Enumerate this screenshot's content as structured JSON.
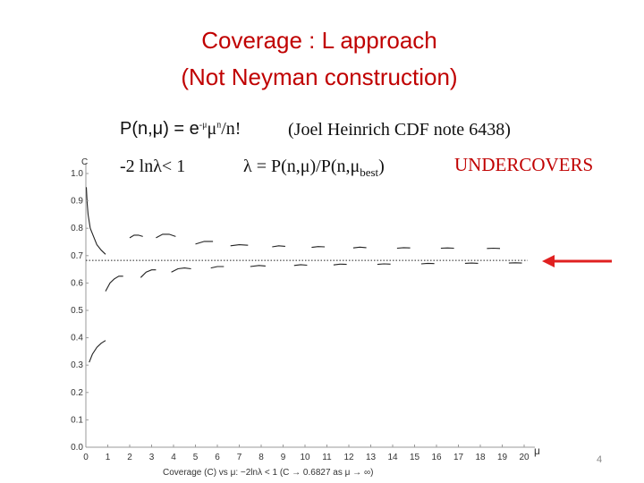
{
  "slide": {
    "title_line1": "Coverage : L approach",
    "title_line2": "(Not Neyman construction)",
    "formula_lhs": "P(n,μ) = e",
    "formula_exp1": "-μ",
    "formula_mid": "μ",
    "formula_exp2": "n",
    "formula_tail": "/n!",
    "reference": "(Joel Heinrich CDF note 6438)",
    "condition": "-2 lnλ< 1",
    "lambda_main": "λ = P(n,μ)/P(n,μ",
    "lambda_sub": "best",
    "lambda_close": ")",
    "verdict": "UNDERCOVERS",
    "page_number": "4",
    "colors": {
      "title": "#c00000",
      "arrow": "#e02020"
    },
    "arrow_icon": "left-arrow-icon"
  },
  "chart_data": {
    "type": "scatter",
    "ylabel": "C",
    "xlabel": "μ",
    "caption": "Coverage (C) vs μ: −2lnλ < 1     (C → 0.6827 as μ → ∞)",
    "xlim": [
      0,
      20
    ],
    "ylim": [
      0,
      1.0
    ],
    "x_ticks": [
      0,
      1,
      2,
      3,
      4,
      5,
      6,
      7,
      8,
      9,
      10,
      11,
      12,
      13,
      14,
      15,
      16,
      17,
      18,
      19,
      20
    ],
    "y_ticks": [
      0.0,
      0.1,
      0.2,
      0.3,
      0.4,
      0.5,
      0.6,
      0.7,
      0.8,
      0.9,
      1.0
    ],
    "y_tick_labels": [
      "0.0",
      "0.1",
      "0.2",
      "0.3",
      "0.4",
      "0.5",
      "0.6",
      "0.7",
      "0.8",
      "0.9",
      "1.0"
    ],
    "reference_line": 0.6827,
    "grid": false,
    "series": [
      {
        "points": [
          [
            0.02,
            0.95
          ],
          [
            0.06,
            0.89
          ],
          [
            0.1,
            0.85
          ],
          [
            0.2,
            0.8
          ],
          [
            0.35,
            0.77
          ],
          [
            0.5,
            0.74
          ],
          [
            0.7,
            0.72
          ],
          [
            0.9,
            0.705
          ]
        ]
      },
      {
        "points": [
          [
            0.15,
            0.31
          ],
          [
            0.3,
            0.34
          ],
          [
            0.5,
            0.365
          ],
          [
            0.7,
            0.38
          ],
          [
            0.9,
            0.39
          ]
        ]
      },
      {
        "points": [
          [
            0.9,
            0.57
          ],
          [
            1.1,
            0.6
          ],
          [
            1.3,
            0.615
          ],
          [
            1.5,
            0.625
          ],
          [
            1.7,
            0.625
          ]
        ]
      },
      {
        "points": [
          [
            2.0,
            0.765
          ],
          [
            2.2,
            0.775
          ],
          [
            2.4,
            0.775
          ],
          [
            2.6,
            0.77
          ]
        ]
      },
      {
        "points": [
          [
            2.5,
            0.62
          ],
          [
            2.75,
            0.64
          ],
          [
            3.0,
            0.648
          ],
          [
            3.2,
            0.648
          ]
        ]
      },
      {
        "points": [
          [
            3.2,
            0.765
          ],
          [
            3.5,
            0.778
          ],
          [
            3.8,
            0.778
          ],
          [
            4.1,
            0.77
          ]
        ]
      },
      {
        "points": [
          [
            3.9,
            0.64
          ],
          [
            4.2,
            0.652
          ],
          [
            4.5,
            0.655
          ],
          [
            4.8,
            0.652
          ]
        ]
      },
      {
        "points": [
          [
            5.0,
            0.742
          ],
          [
            5.4,
            0.752
          ],
          [
            5.8,
            0.752
          ]
        ]
      },
      {
        "points": [
          [
            5.7,
            0.655
          ],
          [
            6.0,
            0.66
          ],
          [
            6.3,
            0.66
          ]
        ]
      },
      {
        "points": [
          [
            6.6,
            0.736
          ],
          [
            7.0,
            0.74
          ],
          [
            7.4,
            0.738
          ]
        ]
      },
      {
        "points": [
          [
            7.5,
            0.66
          ],
          [
            7.9,
            0.664
          ],
          [
            8.2,
            0.662
          ]
        ]
      },
      {
        "points": [
          [
            8.5,
            0.732
          ],
          [
            8.8,
            0.736
          ],
          [
            9.1,
            0.734
          ]
        ]
      },
      {
        "points": [
          [
            9.5,
            0.664
          ],
          [
            9.8,
            0.667
          ],
          [
            10.1,
            0.665
          ]
        ]
      },
      {
        "points": [
          [
            10.3,
            0.73
          ],
          [
            10.6,
            0.733
          ],
          [
            10.9,
            0.732
          ]
        ]
      },
      {
        "points": [
          [
            11.3,
            0.666
          ],
          [
            11.6,
            0.669
          ],
          [
            11.9,
            0.668
          ]
        ]
      },
      {
        "points": [
          [
            12.2,
            0.728
          ],
          [
            12.5,
            0.731
          ],
          [
            12.8,
            0.729
          ]
        ]
      },
      {
        "points": [
          [
            13.3,
            0.668
          ],
          [
            13.6,
            0.67
          ],
          [
            13.9,
            0.669
          ]
        ]
      },
      {
        "points": [
          [
            14.2,
            0.727
          ],
          [
            14.5,
            0.729
          ],
          [
            14.8,
            0.728
          ]
        ]
      },
      {
        "points": [
          [
            15.3,
            0.67
          ],
          [
            15.6,
            0.672
          ],
          [
            15.9,
            0.671
          ]
        ]
      },
      {
        "points": [
          [
            16.2,
            0.727
          ],
          [
            16.5,
            0.728
          ],
          [
            16.8,
            0.727
          ]
        ]
      },
      {
        "points": [
          [
            17.3,
            0.672
          ],
          [
            17.6,
            0.673
          ],
          [
            17.9,
            0.672
          ]
        ]
      },
      {
        "points": [
          [
            18.3,
            0.726
          ],
          [
            18.6,
            0.727
          ],
          [
            18.9,
            0.726
          ]
        ]
      },
      {
        "points": [
          [
            19.3,
            0.673
          ],
          [
            19.6,
            0.674
          ],
          [
            19.9,
            0.673
          ]
        ]
      }
    ]
  }
}
